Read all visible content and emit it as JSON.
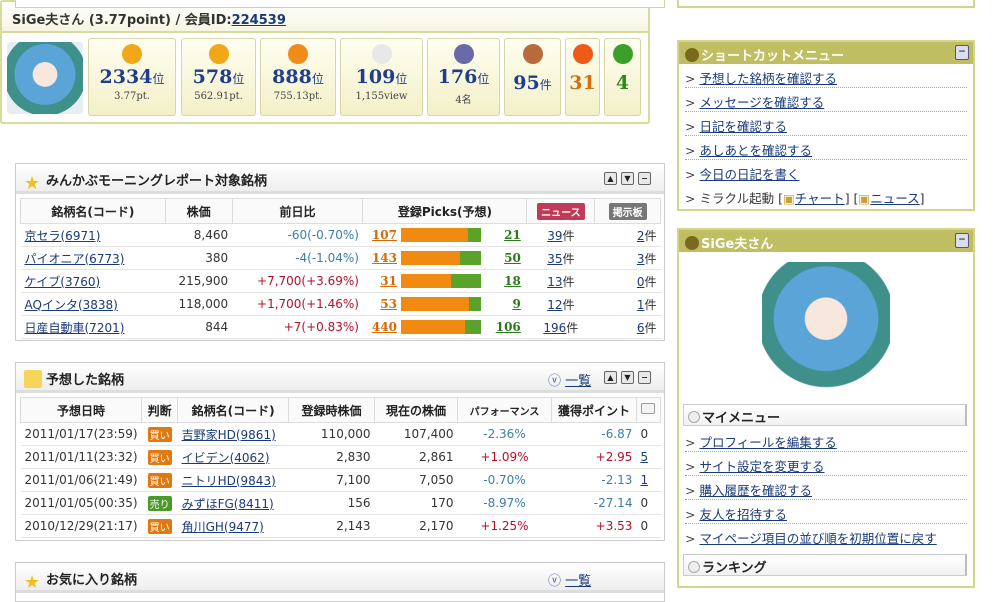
{
  "profile": {
    "user": "SiGe夫さん (3.77point) / 会員ID:",
    "member_id": "224539",
    "stats": [
      {
        "icon": "coin-p-icon",
        "value": "2334",
        "unit": "位",
        "sub": "3.77pt.",
        "color": "#1f3e8a"
      },
      {
        "icon": "coins-pp-icon",
        "value": "578",
        "unit": "位",
        "sub": "562.91pt.",
        "color": "#1f3e8a"
      },
      {
        "icon": "coins-ppp-icon",
        "value": "888",
        "unit": "位",
        "sub": "755.13pt.",
        "color": "#1f3e8a"
      },
      {
        "icon": "mouse-icon",
        "value": "109",
        "unit": "位",
        "sub": "1,155view",
        "color": "#1f3e8a"
      },
      {
        "icon": "trophy-icon",
        "value": "176",
        "unit": "位",
        "sub": "4名",
        "color": "#1f3e8a"
      },
      {
        "icon": "notebook-icon",
        "value": "95",
        "unit": "件",
        "sub": "",
        "color": "#1f3e8a"
      },
      {
        "icon": "orange-n-icon",
        "value": "31",
        "unit": "",
        "sub": "",
        "color": "#d86a10"
      },
      {
        "icon": "green-w-icon",
        "value": "4",
        "unit": "",
        "sub": "",
        "color": "#2a8a1a"
      }
    ]
  },
  "morning": {
    "title": "みんかぶモーニングレポート対象銘柄",
    "headers": [
      "銘柄名(コード)",
      "株価",
      "前日比",
      "登録Picks(予想)",
      "ニュース",
      "掲示板"
    ],
    "rows": [
      {
        "name": "京セラ(6971)",
        "price": "8,460",
        "change": "-60(-0.70%)",
        "dir": "neg",
        "buy": 107,
        "sell": 21,
        "news": "39",
        "board": "2"
      },
      {
        "name": "パイオニア(6773)",
        "price": "380",
        "change": "-4(-1.04%)",
        "dir": "neg",
        "buy": 143,
        "sell": 50,
        "news": "35",
        "board": "3"
      },
      {
        "name": "ケイブ(3760)",
        "price": "215,900",
        "change": "+7,700(+3.69%)",
        "dir": "pos",
        "buy": 31,
        "sell": 18,
        "news": "13",
        "board": "0"
      },
      {
        "name": "AQインタ(3838)",
        "price": "118,000",
        "change": "+1,700(+1.46%)",
        "dir": "pos",
        "buy": 53,
        "sell": 9,
        "news": "12",
        "board": "1"
      },
      {
        "name": "日産自動車(7201)",
        "price": "844",
        "change": "+7(+0.83%)",
        "dir": "pos",
        "buy": 440,
        "sell": 106,
        "news": "196",
        "board": "6"
      }
    ],
    "count_unit": "件"
  },
  "predicted": {
    "title": "予想した銘柄",
    "list_link": "一覧",
    "headers": [
      "予想日時",
      "判断",
      "銘柄名(コード)",
      "登録時株価",
      "現在の株価",
      "パフォーマンス",
      "獲得ポイント"
    ],
    "rows": [
      {
        "date": "2011/01/17(23:59)",
        "judge": "買い",
        "name": "吉野家HD(9861)",
        "reg": "110,000",
        "cur": "107,400",
        "perf": "-2.36%",
        "pts": "-6.87",
        "cm": "0",
        "dir": "neg"
      },
      {
        "date": "2011/01/11(23:32)",
        "judge": "買い",
        "name": "イビデン(4062)",
        "reg": "2,830",
        "cur": "2,861",
        "perf": "+1.09%",
        "pts": "+2.95",
        "cm": "5",
        "dir": "pos"
      },
      {
        "date": "2011/01/06(21:49)",
        "judge": "買い",
        "name": "ニトリHD(9843)",
        "reg": "7,100",
        "cur": "7,050",
        "perf": "-0.70%",
        "pts": "-2.13",
        "cm": "1",
        "dir": "neg"
      },
      {
        "date": "2011/01/05(00:35)",
        "judge": "売り",
        "name": "みずほFG(8411)",
        "reg": "156",
        "cur": "170",
        "perf": "-8.97%",
        "pts": "-27.14",
        "cm": "0",
        "dir": "neg"
      },
      {
        "date": "2010/12/29(21:17)",
        "judge": "買い",
        "name": "角川GH(9477)",
        "reg": "2,143",
        "cur": "2,170",
        "perf": "+1.25%",
        "pts": "+3.53",
        "cm": "0",
        "dir": "pos"
      }
    ]
  },
  "favorites": {
    "title": "お気に入り銘柄",
    "list_link": "一覧"
  },
  "shortcut": {
    "title": "ショートカットメニュー",
    "items": [
      "予想した銘柄を確認する",
      "メッセージを確認する",
      "日記を確認する",
      "あしあとを確認する",
      "今日の日記を書く"
    ],
    "miracle": "ミラクル起動",
    "chart": "チャート",
    "news": "ニュース"
  },
  "user_panel": {
    "title": "SiGe夫さん",
    "mymenu": "マイメニュー",
    "items": [
      "プロフィールを編集する",
      "サイト設定を変更する",
      "購入履歴を確認する",
      "友人を招待する",
      "マイページ項目の並び順を初期位置に戻す"
    ],
    "ranking": "ランキング"
  },
  "colors": {
    "buy": "#f08a10",
    "sell": "#5aa22a",
    "side_header": "#bfbe63",
    "link": "#1a3a78"
  }
}
